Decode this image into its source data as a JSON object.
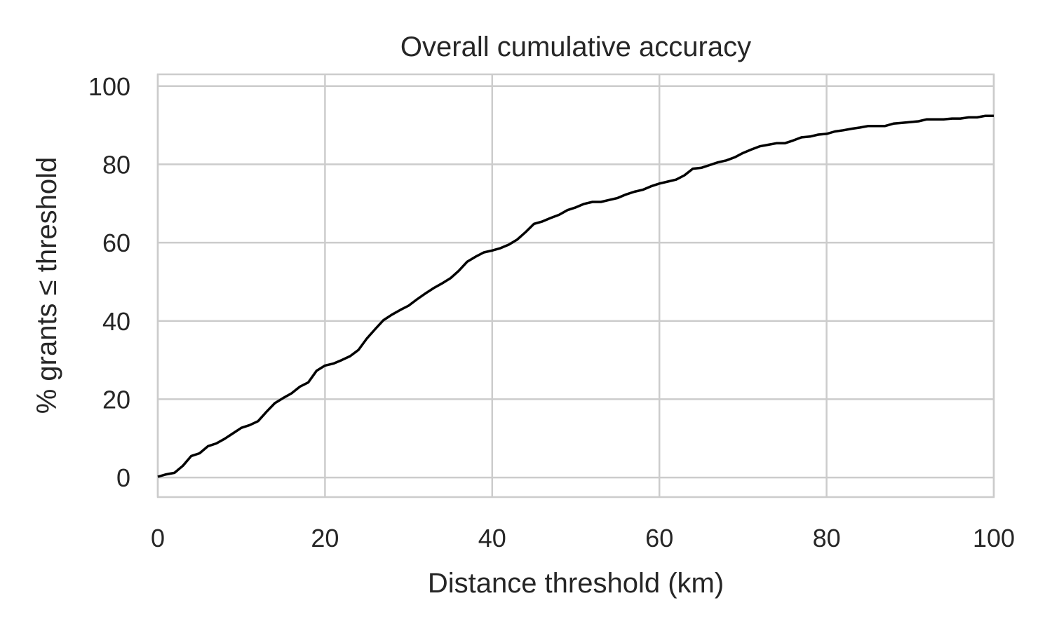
{
  "chart_data": {
    "type": "line",
    "title": "Overall cumulative accuracy",
    "xlabel": "Distance threshold (km)",
    "ylabel": "% grants ≤ threshold",
    "xlim": [
      0,
      100
    ],
    "ylim": [
      -5,
      103
    ],
    "xticks": [
      0,
      20,
      40,
      60,
      80,
      100
    ],
    "yticks": [
      0,
      20,
      40,
      60,
      80,
      100
    ],
    "grid": true,
    "line_color": "#000000",
    "grid_color": "#cccccc",
    "series": [
      {
        "x": [
          0,
          1,
          2,
          3,
          4,
          5,
          6,
          7,
          8,
          9,
          10,
          11,
          12,
          13,
          14,
          15,
          16,
          17,
          18,
          19,
          20,
          21,
          22,
          23,
          24,
          25,
          26,
          27,
          28,
          29,
          30,
          31,
          32,
          33,
          34,
          35,
          36,
          37,
          38,
          39,
          40,
          41,
          42,
          43,
          44,
          45,
          46,
          47,
          48,
          49,
          50,
          51,
          52,
          53,
          54,
          55,
          56,
          57,
          58,
          59,
          60,
          61,
          62,
          63,
          64,
          65,
          66,
          67,
          68,
          69,
          70,
          71,
          72,
          73,
          74,
          75,
          76,
          77,
          78,
          79,
          80,
          81,
          82,
          83,
          84,
          85,
          86,
          87,
          88,
          89,
          90,
          91,
          92,
          93,
          94,
          95,
          96,
          97,
          98,
          99,
          100
        ],
        "values": [
          0.2,
          0.8,
          1.2,
          3.0,
          5.5,
          6.2,
          8.0,
          8.7,
          9.9,
          11.3,
          12.7,
          13.4,
          14.4,
          16.8,
          19.0,
          20.3,
          21.5,
          23.2,
          24.3,
          27.3,
          28.6,
          29.1,
          30.0,
          31.0,
          32.6,
          35.5,
          37.9,
          40.2,
          41.6,
          42.8,
          43.9,
          45.5,
          47.0,
          48.4,
          49.6,
          50.9,
          52.8,
          55.1,
          56.4,
          57.5,
          58.0,
          58.6,
          59.5,
          60.8,
          62.7,
          64.8,
          65.4,
          66.3,
          67.1,
          68.3,
          69.0,
          69.9,
          70.4,
          70.4,
          70.9,
          71.4,
          72.3,
          73.0,
          73.5,
          74.4,
          75.1,
          75.6,
          76.1,
          77.2,
          78.9,
          79.1,
          79.8,
          80.5,
          81.0,
          81.8,
          82.9,
          83.8,
          84.6,
          85.0,
          85.4,
          85.4,
          86.1,
          86.9,
          87.1,
          87.6,
          87.8,
          88.4,
          88.7,
          89.1,
          89.4,
          89.8,
          89.8,
          89.8,
          90.4,
          90.6,
          90.8,
          91.0,
          91.5,
          91.5,
          91.5,
          91.7,
          91.7,
          92.0,
          92.0,
          92.4,
          92.4
        ]
      }
    ]
  }
}
